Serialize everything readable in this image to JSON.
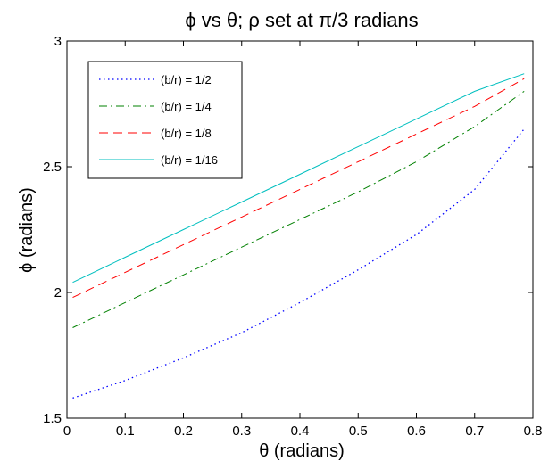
{
  "chart_data": {
    "type": "line",
    "title": "ϕ vs θ; ρ set at π/3 radians",
    "xlabel": "θ  (radians)",
    "ylabel": "ϕ (radians)",
    "xlim": [
      0,
      0.8
    ],
    "ylim": [
      1.5,
      3
    ],
    "xticks": [
      "0",
      "0.1",
      "0.2",
      "0.3",
      "0.4",
      "0.5",
      "0.6",
      "0.7",
      "0.8"
    ],
    "yticks": [
      "1.5",
      "2",
      "2.5",
      "3"
    ],
    "grid": false,
    "legend_position": "top-left",
    "x": [
      0.01,
      0.1,
      0.2,
      0.3,
      0.4,
      0.5,
      0.6,
      0.7,
      0.785
    ],
    "series": [
      {
        "name": "(b/r) = 1/2",
        "color": "#0000ff",
        "style": "dotted",
        "values": [
          1.58,
          1.65,
          1.74,
          1.84,
          1.96,
          2.09,
          2.23,
          2.41,
          2.65
        ]
      },
      {
        "name": "(b/r) = 1/4",
        "color": "#008000",
        "style": "dashdot",
        "values": [
          1.86,
          1.96,
          2.07,
          2.18,
          2.29,
          2.4,
          2.52,
          2.66,
          2.8
        ]
      },
      {
        "name": "(b/r) = 1/8",
        "color": "#ff0000",
        "style": "dashed",
        "values": [
          1.98,
          2.08,
          2.19,
          2.3,
          2.41,
          2.52,
          2.63,
          2.74,
          2.85
        ]
      },
      {
        "name": "(b/r) = 1/16",
        "color": "#00bfbf",
        "style": "solid",
        "values": [
          2.04,
          2.14,
          2.25,
          2.36,
          2.47,
          2.58,
          2.69,
          2.8,
          2.87
        ]
      }
    ]
  }
}
